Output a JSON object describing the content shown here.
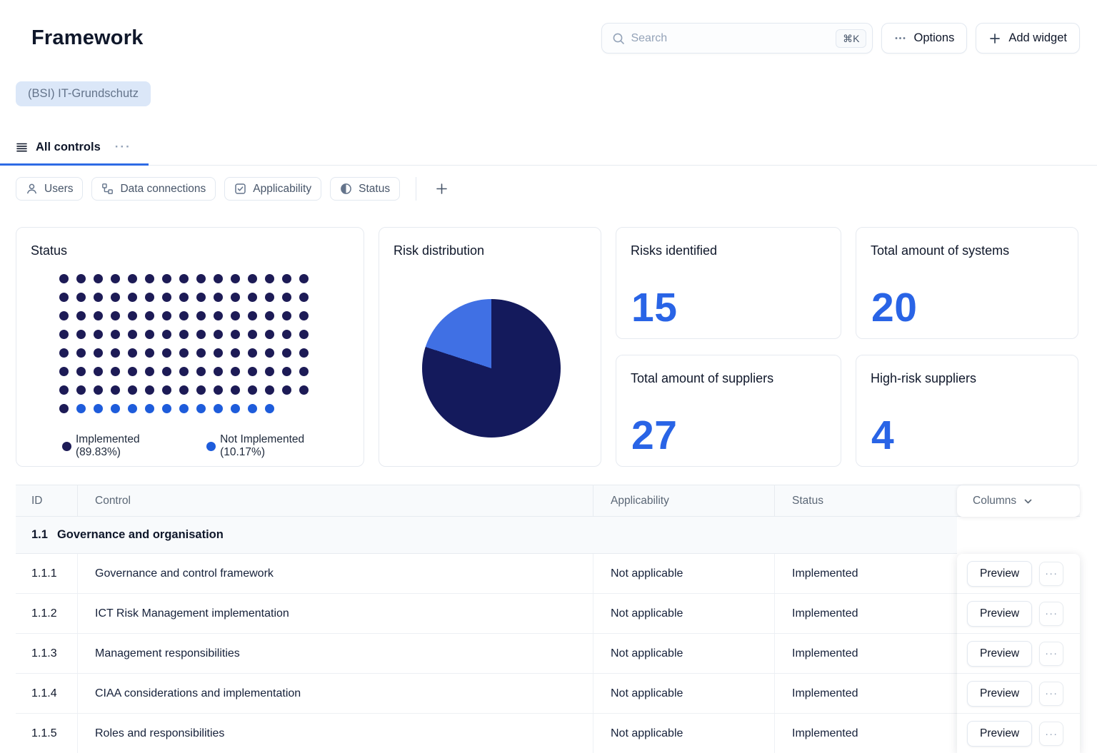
{
  "header": {
    "title": "Framework",
    "search": {
      "placeholder": "Search",
      "shortcut": "⌘K"
    },
    "options_label": "Options",
    "add_widget_label": "Add widget",
    "framework_tag": "(BSI) IT-Grundschutz"
  },
  "tabs": [
    {
      "label": "All controls",
      "active": true
    }
  ],
  "filters": [
    {
      "label": "Users",
      "icon": "user-icon"
    },
    {
      "label": "Data connections",
      "icon": "hierarchy-icon"
    },
    {
      "label": "Applicability",
      "icon": "checkbox-icon"
    },
    {
      "label": "Status",
      "icon": "contrast-icon"
    }
  ],
  "colors": {
    "accent_blue": "#2e6be5",
    "stat_number_blue": "#2964e6",
    "navy": "#1d1b56",
    "dot_blue": "#1e5cdb",
    "pie_navy": "#141a5c",
    "pie_blue": "#4070e4",
    "tag_bg": "#dbe7f8"
  },
  "chart_data": [
    {
      "type": "dot-matrix",
      "title": "Status",
      "total_dots": 118,
      "dots_per_row": 15,
      "series": [
        {
          "name": "Implemented",
          "count": 106,
          "percent": "89.83%",
          "color": "#1d1b56"
        },
        {
          "name": "Not Implemented",
          "count": 12,
          "percent": "10.17%",
          "color": "#1e5cdb"
        }
      ],
      "legend_position": "bottom"
    },
    {
      "type": "pie",
      "title": "Risk distribution",
      "segments": [
        {
          "name": "risk-major",
          "percent": 80,
          "color": "#141a5c"
        },
        {
          "name": "risk-minor",
          "percent": 20,
          "color": "#4070e4"
        }
      ],
      "start_angle_deg": 0,
      "legend_position": "none"
    }
  ],
  "stat_cards": [
    {
      "label": "Risks identified",
      "value": "15"
    },
    {
      "label": "Total amount of systems",
      "value": "20"
    },
    {
      "label": "Total amount of suppliers",
      "value": "27"
    },
    {
      "label": "High-risk suppliers",
      "value": "4"
    }
  ],
  "table": {
    "columns": [
      "ID",
      "Control",
      "Applicability",
      "Status"
    ],
    "columns_menu_label": "Columns",
    "section": {
      "id": "1.1",
      "title": "Governance and organisation"
    },
    "rows": [
      {
        "id": "1.1.1",
        "control": "Governance and control framework",
        "applicability": "Not applicable",
        "status": "Implemented"
      },
      {
        "id": "1.1.2",
        "control": "ICT Risk Management implementation",
        "applicability": "Not applicable",
        "status": "Implemented"
      },
      {
        "id": "1.1.3",
        "control": "Management responsibilities",
        "applicability": "Not applicable",
        "status": "Implemented"
      },
      {
        "id": "1.1.4",
        "control": "CIAA considerations and implementation",
        "applicability": "Not applicable",
        "status": "Implemented"
      },
      {
        "id": "1.1.5",
        "control": "Roles and responsibilities",
        "applicability": "Not applicable",
        "status": "Implemented"
      }
    ],
    "row_action_label": "Preview"
  }
}
